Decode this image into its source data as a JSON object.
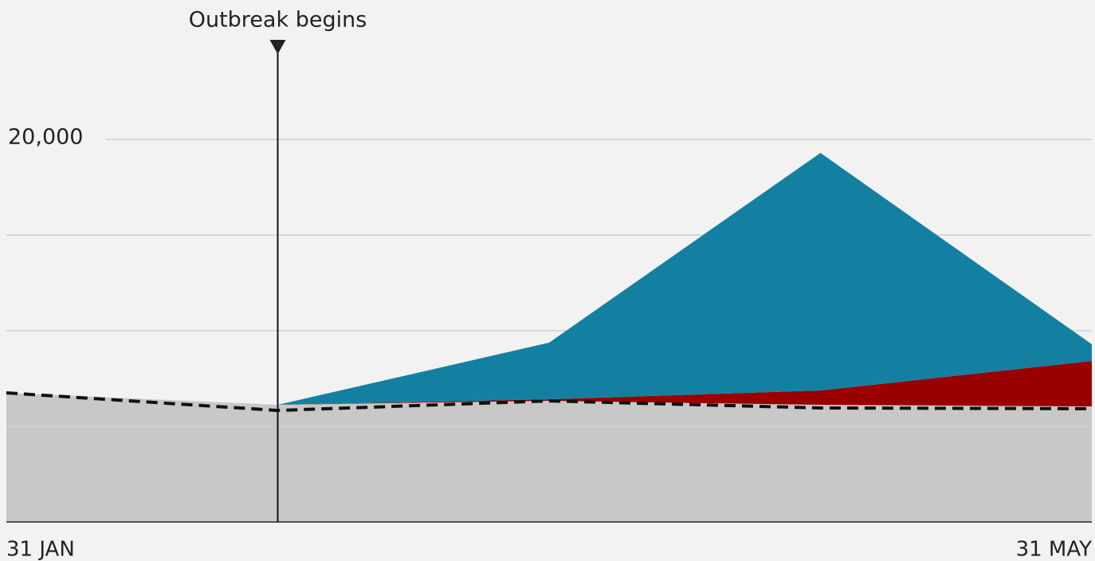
{
  "chart_data": {
    "type": "stacked_area",
    "categories": [
      "31 JAN",
      null,
      null,
      null,
      "31 MAY"
    ],
    "series": [
      {
        "color": "#c8c8c8",
        "values": [
          6750,
          6125,
          6333,
          6125,
          6040
        ]
      },
      {
        "color": "#990000",
        "values": [
          0,
          0,
          80,
          750,
          2375
        ]
      },
      {
        "color": "#1380a1",
        "values": [
          0,
          0,
          2960,
          12420,
          875
        ]
      }
    ],
    "average": {
      "color": "#111111",
      "dashed": true,
      "values": [
        6750,
        5830,
        6330,
        5960,
        5920
      ]
    },
    "annotations": [
      {
        "text": "Outbreak begins",
        "x": 1
      }
    ],
    "ylim": [
      0,
      25000
    ],
    "yticks": [
      {
        "value": 5000
      },
      {
        "value": 10000
      },
      {
        "value": 15000
      },
      {
        "value": 20000,
        "label": "20,000"
      }
    ],
    "grid": true
  }
}
